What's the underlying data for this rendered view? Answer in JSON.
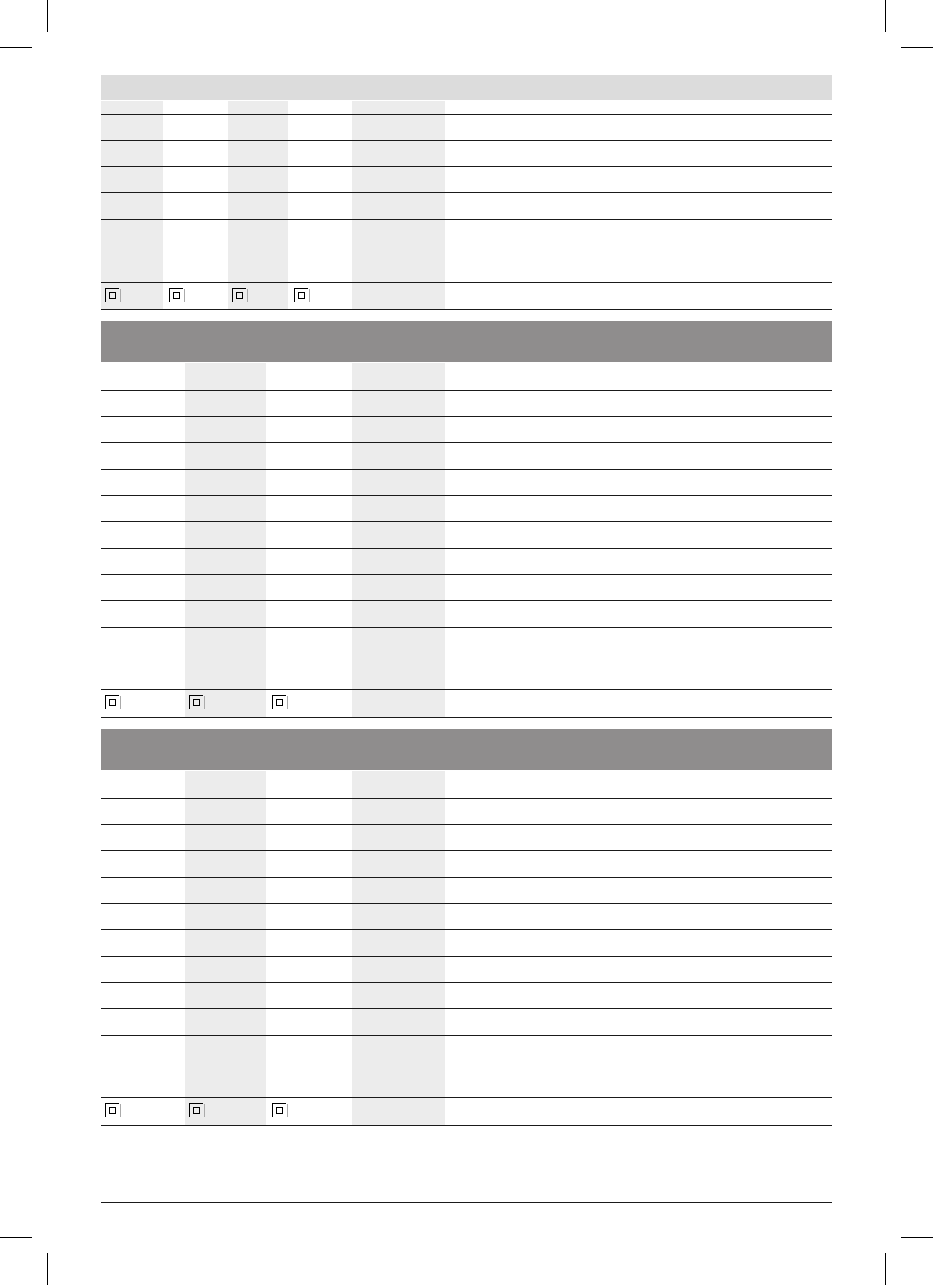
{
  "colors": {
    "header_light": "#dcdcdc",
    "header_dark": "#8f8d8d",
    "shaded_column": "#ececec",
    "rule": "#1a1a1a"
  },
  "tables": [
    {
      "header_style": "light",
      "columns": 6,
      "row_count": 6,
      "last_row_icons": [
        "protection-class-ii-icon",
        "protection-class-ii-icon",
        "protection-class-ii-icon",
        "protection-class-ii-icon"
      ]
    },
    {
      "header_style": "dark",
      "columns": 5,
      "row_count": 12,
      "last_row_icons": [
        "protection-class-ii-icon",
        "protection-class-ii-icon",
        "protection-class-ii-icon"
      ]
    },
    {
      "header_style": "dark",
      "columns": 5,
      "row_count": 12,
      "last_row_icons": [
        "protection-class-ii-icon",
        "protection-class-ii-icon",
        "protection-class-ii-icon"
      ]
    }
  ]
}
